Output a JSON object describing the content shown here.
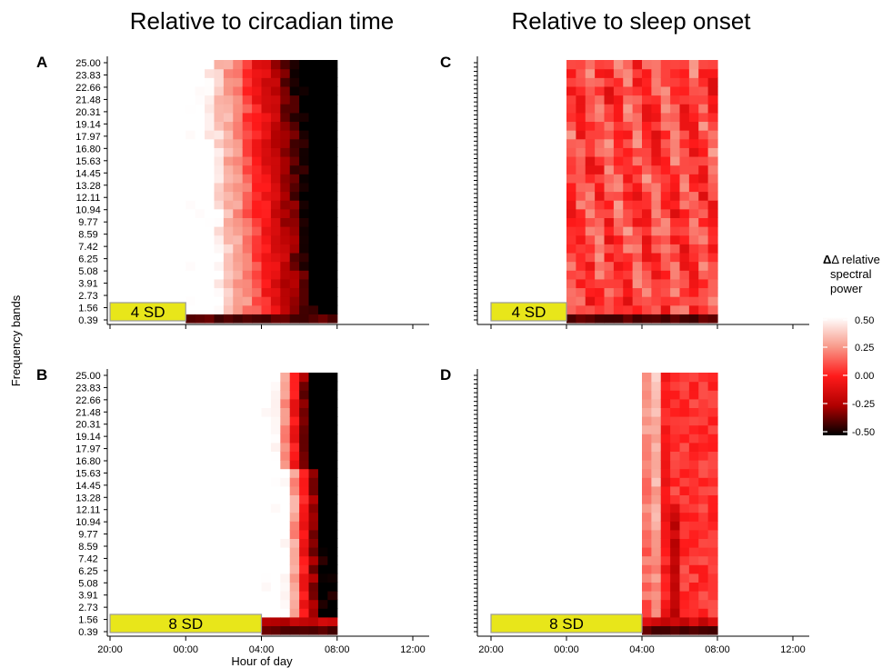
{
  "column_titles": [
    "Relative to circadian time",
    "Relative to sleep onset"
  ],
  "y_axis_title": "Frequency bands",
  "x_axis_title": "Hour of day",
  "x_tick_labels": [
    "20:00",
    "00:00",
    "04:00",
    "08:00",
    "12:00"
  ],
  "legend": {
    "title_lines": [
      "Δ relative",
      "spectral",
      "power"
    ],
    "tick_labels": [
      "0.50",
      "0.25",
      "0.00",
      "-0.25",
      "-0.50"
    ],
    "scale": [
      -0.5,
      0.5
    ],
    "colors": [
      "#000000",
      "#b00000",
      "#ff0000",
      "#f8a090",
      "#ffffff"
    ]
  },
  "chart_data": [
    {
      "type": "heatmap",
      "panel": "A",
      "sd_label": "4 SD",
      "sd_hours": [
        20,
        24
      ],
      "x_range_hours": [
        20,
        36
      ],
      "data_hours": [
        24,
        32
      ],
      "y_tick_labels": [
        "0.39",
        "1.56",
        "2.73",
        "3.91",
        "5.08",
        "6.25",
        "7.42",
        "8.59",
        "9.77",
        "10.94",
        "12.11",
        "13.28",
        "14.45",
        "15.63",
        "16.80",
        "17.97",
        "19.14",
        "20.31",
        "21.48",
        "22.66",
        "23.83",
        "25.00"
      ],
      "show_y_labels": true,
      "pattern": "wave-from-left: near-white/pink early after 00:00, shifting to red and dark red by 08:00; bottom band dark"
    },
    {
      "type": "heatmap",
      "panel": "B",
      "sd_label": "8 SD",
      "sd_hours": [
        20,
        28
      ],
      "x_range_hours": [
        20,
        36
      ],
      "data_hours": [
        28,
        32
      ],
      "y_tick_labels": [
        "0.39",
        "1.56",
        "2.73",
        "3.91",
        "5.08",
        "6.25",
        "7.42",
        "8.59",
        "9.77",
        "10.94",
        "12.11",
        "13.28",
        "14.45",
        "15.63",
        "16.80",
        "17.97",
        "19.14",
        "20.31",
        "21.48",
        "22.66",
        "23.83",
        "25.00"
      ],
      "show_y_labels": true,
      "pattern": "white/pink at 04:00 shifting to red and black near 08:00 in mid bands"
    },
    {
      "type": "heatmap",
      "panel": "C",
      "sd_label": "4 SD",
      "sd_hours": [
        20,
        24
      ],
      "x_range_hours": [
        20,
        36
      ],
      "data_hours": [
        24,
        32
      ],
      "show_y_labels": false,
      "pattern": "mostly red and light red throughout, dark bottom band"
    },
    {
      "type": "heatmap",
      "panel": "D",
      "sd_label": "8 SD",
      "sd_hours": [
        20,
        28
      ],
      "x_range_hours": [
        20,
        36
      ],
      "data_hours": [
        28,
        32
      ],
      "show_y_labels": false,
      "pattern": "red throughout, lighter pink around 05:00, dark patches near 07:00-08:00"
    }
  ]
}
